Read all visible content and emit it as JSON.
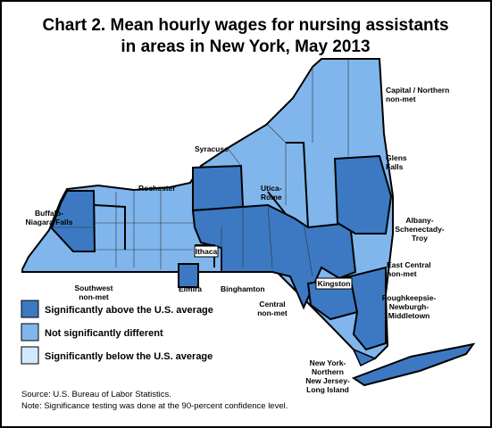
{
  "title_lines": [
    "Chart 2. Mean hourly wages for nursing assistants",
    "in areas in New York, May 2013"
  ],
  "areas": [
    {
      "lines": [
        "Capital / Northern",
        "non-met"
      ]
    },
    {
      "lines": [
        "Glens",
        "Falls"
      ]
    },
    {
      "lines": [
        "Syracuse"
      ]
    },
    {
      "lines": [
        "Rochester"
      ]
    },
    {
      "lines": [
        "Utica-",
        "Rome"
      ]
    },
    {
      "lines": [
        "Buffalo-",
        "Niagara Falls"
      ]
    },
    {
      "lines": [
        "Albany-",
        "Schenectady-",
        "Troy"
      ]
    },
    {
      "lines": [
        "Ithaca"
      ]
    },
    {
      "lines": [
        "East Central",
        "non-met"
      ]
    },
    {
      "lines": [
        "Kingston"
      ]
    },
    {
      "lines": [
        "Poughkeepsie-",
        "Newburgh-",
        "Middletown"
      ]
    },
    {
      "lines": [
        "Southwest",
        "non-met"
      ]
    },
    {
      "lines": [
        "Elmira"
      ]
    },
    {
      "lines": [
        "Binghamton"
      ]
    },
    {
      "lines": [
        "Central",
        "non-met"
      ]
    },
    {
      "lines": [
        "New York-",
        "Northern",
        "New Jersey-",
        "Long Island"
      ]
    }
  ],
  "legend": [
    {
      "label": "Significantly above the U.S. average",
      "color": "#3c79c2"
    },
    {
      "label": "Not significantly different",
      "color": "#80b6ec"
    },
    {
      "label": "Significantly below the U.S. average",
      "color": "#d2e9fc"
    }
  ],
  "source": "Source: U.S. Bureau of Labor Statistics.",
  "note": "Note: Significance testing was done at the 90-percent confidence level."
}
